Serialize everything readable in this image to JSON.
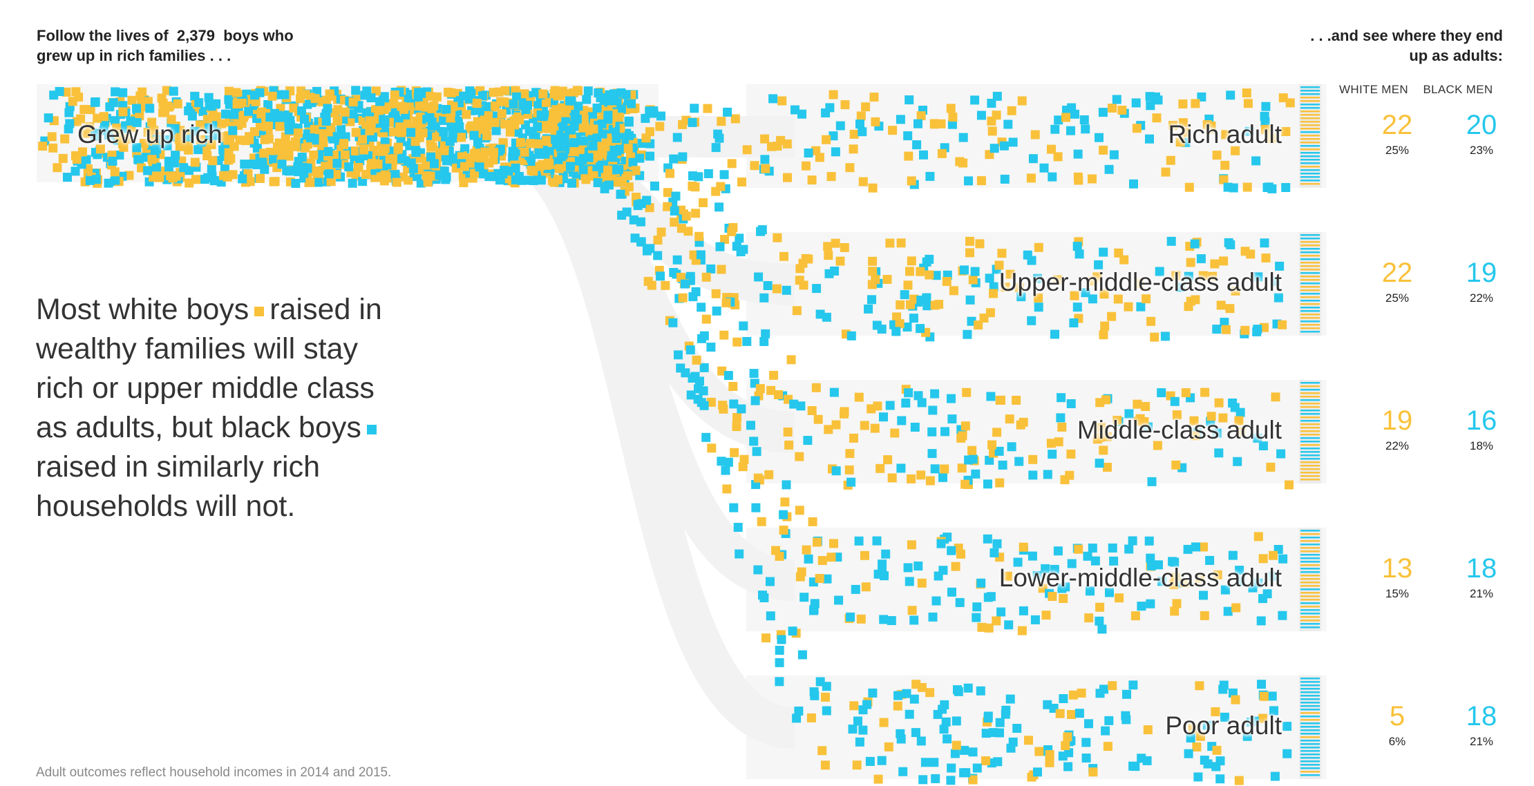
{
  "header": {
    "left_prefix": "Follow the lives of",
    "left_count": "2,379",
    "left_suffix": "boys who",
    "left_line2": "grew up in rich families . . .",
    "right_line1": ". . .and see where they end",
    "right_line2": "up as adults:"
  },
  "columns": {
    "white": "WHITE MEN",
    "black": "BLACK MEN"
  },
  "start_label": "Grew up rich",
  "annotation": {
    "part1": "Most white boys",
    "part2": "raised in wealthy families will stay rich or upper middle class as adults, but black boys",
    "part3": "raised in similarly rich households will not."
  },
  "footnote": "Adult outcomes reflect household incomes in 2014 and 2015.",
  "colors": {
    "white_men": "#f9c13a",
    "black_men": "#25c7ec",
    "band": "#f6f6f6",
    "text": "#333333"
  },
  "chart_data": {
    "type": "flow",
    "title": "Follow the lives of 2,379 boys who grew up in rich families . . .",
    "source_category": "Grew up rich",
    "total_boys": 2379,
    "series": [
      {
        "name": "WHITE MEN",
        "color": "#f9c13a"
      },
      {
        "name": "BLACK MEN",
        "color": "#25c7ec"
      }
    ],
    "categories": [
      "Rich adult",
      "Upper-middle-class adult",
      "Middle-class adult",
      "Lower-middle-class adult",
      "Poor adult"
    ],
    "outcomes": [
      {
        "label": "Rich adult",
        "white_count": "22",
        "white_pct": "25%",
        "black_count": "20",
        "black_pct": "23%"
      },
      {
        "label": "Upper-middle-class adult",
        "white_count": "22",
        "white_pct": "25%",
        "black_count": "19",
        "black_pct": "22%"
      },
      {
        "label": "Middle-class adult",
        "white_count": "19",
        "white_pct": "22%",
        "black_count": "16",
        "black_pct": "18%"
      },
      {
        "label": "Lower-middle-class adult",
        "white_count": "13",
        "white_pct": "15%",
        "black_count": "18",
        "black_pct": "21%"
      },
      {
        "label": "Poor adult",
        "white_count": "5",
        "white_pct": "6%",
        "black_count": "18",
        "black_pct": "21%"
      }
    ]
  }
}
